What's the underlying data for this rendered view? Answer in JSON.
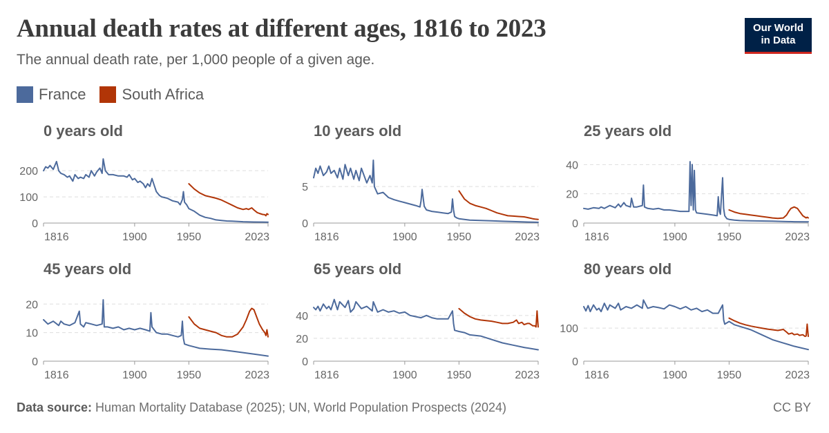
{
  "header": {
    "title": "Annual death rates at different ages, 1816 to 2023",
    "subtitle": "The annual death rate, per 1,000 people of a given age.",
    "logo_line1": "Our World",
    "logo_line2": "in Data"
  },
  "legend": [
    {
      "name": "France",
      "color": "#4c6a9c"
    },
    {
      "name": "South Africa",
      "color": "#b13507"
    }
  ],
  "footer": {
    "source_label": "Data source:",
    "source_text": " Human Mortality Database (2025); UN, World Population Prospects (2024)",
    "license": "CC BY"
  },
  "chart_data": [
    {
      "type": "line",
      "title": "0 years old",
      "xlim": [
        1816,
        2023
      ],
      "ylim": [
        0,
        240
      ],
      "xticks": [
        "1816",
        "1900",
        "1950",
        "2023"
      ],
      "yticks": [
        0,
        100,
        200
      ],
      "series": [
        {
          "name": "France",
          "color": "#4c6a9c",
          "x": [
            1816,
            1818,
            1820,
            1822,
            1825,
            1828,
            1830,
            1832,
            1835,
            1838,
            1840,
            1843,
            1845,
            1848,
            1850,
            1853,
            1855,
            1858,
            1860,
            1863,
            1865,
            1868,
            1870,
            1871,
            1873,
            1876,
            1880,
            1885,
            1890,
            1893,
            1895,
            1898,
            1900,
            1903,
            1905,
            1908,
            1910,
            1912,
            1914,
            1916,
            1918,
            1920,
            1923,
            1925,
            1930,
            1935,
            1940,
            1942,
            1944,
            1945,
            1946,
            1948,
            1950,
            1955,
            1960,
            1965,
            1970,
            1975,
            1980,
            1985,
            1990,
            2000,
            2010,
            2023
          ],
          "values": [
            200,
            215,
            210,
            220,
            205,
            235,
            200,
            190,
            185,
            175,
            180,
            160,
            185,
            170,
            175,
            170,
            185,
            175,
            200,
            180,
            195,
            210,
            190,
            245,
            200,
            185,
            185,
            180,
            180,
            175,
            185,
            165,
            170,
            155,
            160,
            150,
            135,
            150,
            140,
            170,
            145,
            120,
            105,
            100,
            95,
            85,
            80,
            70,
            90,
            120,
            80,
            70,
            55,
            45,
            30,
            22,
            18,
            12,
            10,
            8,
            7,
            5,
            4,
            3.5
          ]
        },
        {
          "name": "South Africa",
          "color": "#b13507",
          "x": [
            1950,
            1955,
            1960,
            1965,
            1970,
            1975,
            1980,
            1985,
            1990,
            1995,
            2000,
            2003,
            2005,
            2008,
            2010,
            2013,
            2015,
            2018,
            2020,
            2021,
            2022,
            2023
          ],
          "values": [
            150,
            130,
            115,
            105,
            100,
            95,
            88,
            78,
            68,
            58,
            52,
            55,
            52,
            58,
            50,
            40,
            37,
            33,
            32,
            28,
            36,
            33
          ]
        }
      ]
    },
    {
      "type": "line",
      "title": "10 years old",
      "xlim": [
        1816,
        2023
      ],
      "ylim": [
        0,
        8.6
      ],
      "xticks": [
        "1816",
        "1900",
        "1950",
        "2023"
      ],
      "yticks": [
        0,
        5
      ],
      "series": [
        {
          "name": "France",
          "color": "#4c6a9c",
          "x": [
            1816,
            1818,
            1820,
            1822,
            1825,
            1828,
            1830,
            1832,
            1835,
            1838,
            1840,
            1843,
            1845,
            1848,
            1850,
            1853,
            1855,
            1858,
            1860,
            1865,
            1868,
            1870,
            1871,
            1872,
            1875,
            1880,
            1885,
            1890,
            1895,
            1900,
            1905,
            1910,
            1914,
            1915,
            1916,
            1918,
            1920,
            1925,
            1930,
            1935,
            1940,
            1943,
            1944,
            1945,
            1946,
            1948,
            1950,
            1955,
            1960,
            1970,
            1980,
            1990,
            2000,
            2010,
            2023
          ],
          "values": [
            6.2,
            7.5,
            6.8,
            7.8,
            6.5,
            7.0,
            7.8,
            6.8,
            7.2,
            6.2,
            7.5,
            6.0,
            8.0,
            6.5,
            7.5,
            6.0,
            7.2,
            5.8,
            7.5,
            5.5,
            6.5,
            5.5,
            8.6,
            5.0,
            4.0,
            4.2,
            3.5,
            3.2,
            3.0,
            2.8,
            2.6,
            2.4,
            2.2,
            3.0,
            4.6,
            2.3,
            1.8,
            1.6,
            1.5,
            1.4,
            1.3,
            1.5,
            3.3,
            1.8,
            0.9,
            0.7,
            0.6,
            0.5,
            0.4,
            0.35,
            0.3,
            0.25,
            0.2,
            0.15,
            0.1
          ]
        },
        {
          "name": "South Africa",
          "color": "#b13507",
          "x": [
            1950,
            1955,
            1960,
            1965,
            1970,
            1975,
            1980,
            1985,
            1990,
            1995,
            2000,
            2005,
            2010,
            2015,
            2018,
            2020,
            2023
          ],
          "values": [
            4.4,
            3.3,
            2.7,
            2.4,
            2.2,
            2.0,
            1.7,
            1.4,
            1.2,
            1.0,
            0.95,
            0.9,
            0.85,
            0.7,
            0.6,
            0.55,
            0.5
          ]
        }
      ]
    },
    {
      "type": "line",
      "title": "25 years old",
      "xlim": [
        1816,
        2023
      ],
      "ylim": [
        0,
        43
      ],
      "xticks": [
        "1816",
        "1900",
        "1950",
        "2023"
      ],
      "yticks": [
        0,
        20,
        40
      ],
      "series": [
        {
          "name": "France",
          "color": "#4c6a9c",
          "x": [
            1816,
            1820,
            1825,
            1830,
            1832,
            1835,
            1840,
            1845,
            1848,
            1850,
            1853,
            1855,
            1859,
            1860,
            1862,
            1865,
            1870,
            1871,
            1872,
            1875,
            1880,
            1885,
            1890,
            1895,
            1900,
            1905,
            1910,
            1913,
            1914,
            1915,
            1916,
            1917,
            1918,
            1919,
            1920,
            1925,
            1930,
            1935,
            1939,
            1940,
            1941,
            1942,
            1944,
            1945,
            1946,
            1948,
            1950,
            1955,
            1960,
            1970,
            1980,
            1990,
            2000,
            2010,
            2023
          ],
          "values": [
            10,
            9.5,
            10.5,
            10,
            11,
            10,
            12,
            10.5,
            13,
            11,
            14,
            12,
            11,
            17,
            11,
            11,
            12,
            26,
            11,
            10,
            9.5,
            10,
            9,
            9,
            8.5,
            8,
            8,
            8,
            42,
            12,
            40,
            9,
            36,
            9,
            7,
            6.5,
            6,
            5.5,
            5,
            18,
            8,
            6,
            31,
            10,
            5,
            3,
            2.5,
            2,
            1.7,
            1.5,
            1.4,
            1.3,
            1.1,
            0.9,
            0.8
          ]
        },
        {
          "name": "South Africa",
          "color": "#b13507",
          "x": [
            1950,
            1955,
            1960,
            1965,
            1970,
            1975,
            1980,
            1985,
            1990,
            1995,
            2000,
            2003,
            2005,
            2007,
            2010,
            2013,
            2015,
            2018,
            2020,
            2021,
            2022,
            2023
          ],
          "values": [
            9,
            7.5,
            6.5,
            6,
            5.5,
            5,
            4.5,
            4,
            3.5,
            3.2,
            3.5,
            5.5,
            8,
            10,
            11,
            10,
            8,
            5,
            4,
            3.5,
            4,
            3.5
          ]
        }
      ]
    },
    {
      "type": "line",
      "title": "45 years old",
      "xlim": [
        1816,
        2023
      ],
      "ylim": [
        0,
        22
      ],
      "xticks": [
        "1816",
        "1900",
        "1950",
        "2023"
      ],
      "yticks": [
        0,
        10,
        20
      ],
      "series": [
        {
          "name": "France",
          "color": "#4c6a9c",
          "x": [
            1816,
            1820,
            1825,
            1830,
            1832,
            1835,
            1840,
            1845,
            1849,
            1850,
            1853,
            1855,
            1860,
            1865,
            1870,
            1871,
            1872,
            1875,
            1880,
            1885,
            1890,
            1895,
            1900,
            1905,
            1910,
            1914,
            1915,
            1916,
            1918,
            1920,
            1925,
            1930,
            1935,
            1940,
            1943,
            1944,
            1945,
            1946,
            1950,
            1955,
            1960,
            1970,
            1980,
            1990,
            2000,
            2010,
            2023
          ],
          "values": [
            14.5,
            13,
            14,
            12.5,
            14,
            13,
            12.5,
            13.5,
            17.5,
            13,
            12,
            13.5,
            13,
            12.5,
            13,
            21.5,
            12,
            12,
            11.5,
            12,
            11,
            11.5,
            11,
            11.5,
            11,
            10.5,
            17,
            12,
            11,
            10,
            9.5,
            9.5,
            9,
            8.5,
            9,
            14,
            8,
            6,
            5.5,
            5,
            4.5,
            4.2,
            4,
            3.5,
            3,
            2.5,
            1.8
          ]
        },
        {
          "name": "South Africa",
          "color": "#b13507",
          "x": [
            1950,
            1955,
            1960,
            1965,
            1970,
            1975,
            1980,
            1985,
            1990,
            1995,
            2000,
            2003,
            2006,
            2008,
            2010,
            2013,
            2015,
            2018,
            2020,
            2021,
            2022,
            2023
          ],
          "values": [
            15.5,
            13,
            11.5,
            11,
            10.5,
            10,
            9,
            8.5,
            8.5,
            9.5,
            12,
            14.5,
            17.5,
            18.5,
            18,
            15,
            13,
            11,
            10,
            9,
            11,
            8.5
          ]
        }
      ]
    },
    {
      "type": "line",
      "title": "65 years old",
      "xlim": [
        1816,
        2023
      ],
      "ylim": [
        0,
        55
      ],
      "xticks": [
        "1816",
        "1900",
        "1950",
        "2023"
      ],
      "yticks": [
        0,
        20,
        40
      ],
      "series": [
        {
          "name": "France",
          "color": "#4c6a9c",
          "x": [
            1816,
            1818,
            1820,
            1822,
            1825,
            1828,
            1830,
            1832,
            1835,
            1838,
            1840,
            1845,
            1848,
            1850,
            1853,
            1855,
            1860,
            1865,
            1870,
            1871,
            1875,
            1880,
            1885,
            1890,
            1895,
            1900,
            1905,
            1910,
            1915,
            1920,
            1925,
            1930,
            1935,
            1940,
            1944,
            1945,
            1946,
            1950,
            1955,
            1960,
            1970,
            1980,
            1990,
            2000,
            2010,
            2023
          ],
          "values": [
            47,
            45,
            48,
            44,
            50,
            46,
            48,
            45,
            54,
            45,
            52,
            47,
            53,
            43,
            46,
            52,
            46,
            48,
            44,
            52,
            43,
            45,
            43,
            44,
            42,
            43,
            40,
            39,
            38,
            40,
            38,
            37,
            37,
            37,
            44,
            33,
            27,
            26,
            25,
            23,
            22,
            19,
            16,
            14,
            12,
            10
          ]
        },
        {
          "name": "South Africa",
          "color": "#b13507",
          "x": [
            1950,
            1955,
            1960,
            1965,
            1970,
            1975,
            1980,
            1985,
            1990,
            1995,
            2000,
            2003,
            2005,
            2008,
            2010,
            2013,
            2015,
            2018,
            2020,
            2021,
            2022,
            2023
          ],
          "values": [
            46,
            42,
            39,
            37,
            36,
            35.5,
            35,
            34,
            33,
            33,
            34,
            36,
            33,
            34,
            32,
            33,
            33,
            31,
            31,
            30,
            44,
            30
          ]
        }
      ]
    },
    {
      "type": "line",
      "title": "80 years old",
      "xlim": [
        1816,
        2023
      ],
      "ylim": [
        0,
        190
      ],
      "xticks": [
        "1816",
        "1900",
        "1950",
        "2023"
      ],
      "yticks": [
        0,
        100
      ],
      "series": [
        {
          "name": "France",
          "color": "#4c6a9c",
          "x": [
            1816,
            1818,
            1820,
            1822,
            1825,
            1828,
            1830,
            1832,
            1835,
            1838,
            1840,
            1845,
            1848,
            1850,
            1855,
            1860,
            1865,
            1870,
            1871,
            1875,
            1880,
            1885,
            1890,
            1895,
            1900,
            1905,
            1910,
            1915,
            1920,
            1925,
            1930,
            1935,
            1940,
            1944,
            1945,
            1946,
            1950,
            1955,
            1960,
            1970,
            1980,
            1990,
            2000,
            2010,
            2023
          ],
          "values": [
            165,
            152,
            168,
            150,
            170,
            155,
            160,
            150,
            175,
            155,
            170,
            160,
            175,
            155,
            165,
            160,
            170,
            160,
            185,
            160,
            165,
            162,
            158,
            170,
            165,
            158,
            165,
            155,
            160,
            150,
            155,
            145,
            145,
            170,
            125,
            112,
            120,
            110,
            105,
            95,
            80,
            65,
            55,
            45,
            35
          ]
        },
        {
          "name": "South Africa",
          "color": "#b13507",
          "x": [
            1950,
            1955,
            1960,
            1965,
            1970,
            1975,
            1980,
            1985,
            1990,
            1995,
            2000,
            2003,
            2005,
            2008,
            2010,
            2013,
            2015,
            2018,
            2020,
            2021,
            2022,
            2023
          ],
          "values": [
            130,
            122,
            115,
            110,
            106,
            103,
            100,
            97,
            95,
            93,
            96,
            88,
            82,
            85,
            80,
            82,
            78,
            80,
            75,
            76,
            112,
            75
          ]
        }
      ]
    }
  ]
}
